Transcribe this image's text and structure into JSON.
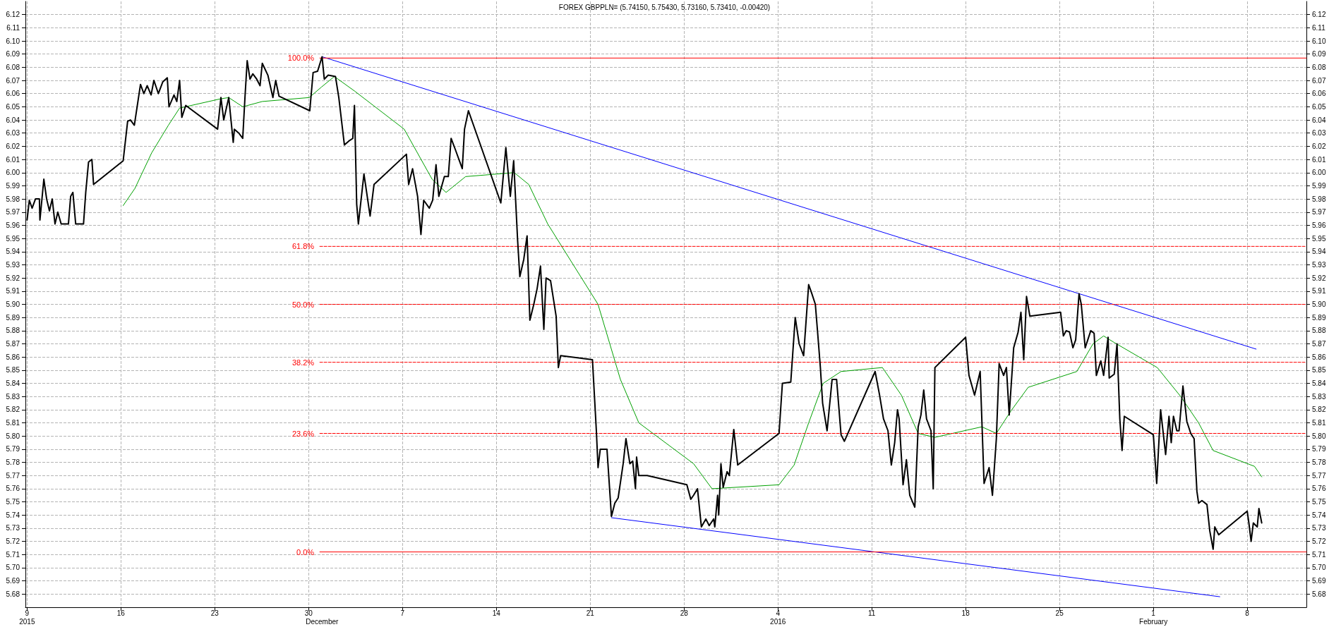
{
  "chart_data": {
    "type": "line",
    "title": "FOREX GBPPLN= (5.74150, 5.75430, 5.73160, 5.73410, -0.00420)",
    "xlim": [
      "2015-11-08T21:00",
      "2016-02-12T10:00"
    ],
    "xticks": [
      {
        "value": "2015-11-09",
        "label": "9"
      },
      {
        "value": "2015-11-16",
        "label": "16"
      },
      {
        "value": "2015-11-23",
        "label": "23"
      },
      {
        "value": "2015-11-30",
        "label": "30"
      },
      {
        "value": "2015-12-07",
        "label": "7"
      },
      {
        "value": "2015-12-14",
        "label": "14"
      },
      {
        "value": "2015-12-21",
        "label": "21"
      },
      {
        "value": "2015-12-28",
        "label": "28"
      },
      {
        "value": "2016-01-04",
        "label": "4"
      },
      {
        "value": "2016-01-11",
        "label": "11"
      },
      {
        "value": "2016-01-18",
        "label": "18"
      },
      {
        "value": "2016-01-25",
        "label": "25"
      },
      {
        "value": "2016-02-01",
        "label": "1"
      },
      {
        "value": "2016-02-08",
        "label": "8"
      }
    ],
    "x2lim": [
      "2015-11-08T21:00",
      "2016-02-12T10:00"
    ],
    "x2ticks": [
      {
        "value": "2015-11-09",
        "label": "2015"
      },
      {
        "value": "2015-12-01",
        "label": "December"
      },
      {
        "value": "2016-01-04",
        "label": "2016"
      },
      {
        "value": "2016-02-01",
        "label": "February"
      }
    ],
    "ylim": [
      5.67,
      6.13
    ],
    "yticks": [
      5.68,
      5.69,
      {
        "value": 5.7,
        "label": "5.70"
      },
      5.71,
      5.72,
      5.73,
      5.74,
      5.75,
      5.76,
      5.77,
      5.78,
      5.79,
      {
        "value": 5.8,
        "label": "5.80"
      },
      5.81,
      5.82,
      5.83,
      5.84,
      5.85,
      5.86,
      5.87,
      5.88,
      5.89,
      {
        "value": 5.9,
        "label": "5.90"
      },
      5.91,
      5.92,
      5.93,
      5.94,
      5.95,
      5.96,
      5.97,
      5.98,
      5.99,
      {
        "value": 6.0,
        "label": "6.00"
      },
      6.01,
      6.02,
      6.03,
      6.04,
      6.05,
      6.06,
      6.07,
      6.08,
      6.09,
      {
        "value": 6.1,
        "label": "6.10"
      },
      6.11,
      6.12
    ],
    "y2lim": [
      5.67,
      6.13
    ],
    "y2ticks": [
      5.68,
      5.69,
      {
        "value": 5.7,
        "label": "5.70"
      },
      5.71,
      5.72,
      5.73,
      5.74,
      5.75,
      5.76,
      5.77,
      5.78,
      5.79,
      {
        "value": 5.8,
        "label": "5.80"
      },
      5.81,
      5.82,
      5.83,
      5.84,
      5.85,
      5.86,
      5.87,
      5.88,
      5.89,
      {
        "value": 5.9,
        "label": "5.90"
      },
      5.91,
      5.92,
      5.93,
      5.94,
      5.95,
      5.96,
      5.97,
      5.98,
      5.99,
      {
        "value": 6.0,
        "label": "6.00"
      },
      6.01,
      6.02,
      6.03,
      6.04,
      6.05,
      6.06,
      6.07,
      6.08,
      6.09,
      {
        "value": 6.1,
        "label": "6.10"
      },
      6.11,
      6.12
    ],
    "grid": true,
    "legend": false,
    "marker": "none",
    "line_style": "solid",
    "series": [
      {
        "color": "#000000",
        "x": [
          "2015-11-09T00:00",
          "2015-11-09T04:00",
          "2015-11-09T09:00",
          "2015-11-09T15:00",
          "2015-11-09T22:00",
          "2015-11-09T23:00",
          "2015-11-10T06:00",
          "2015-11-10T11:00",
          "2015-11-10T16:00",
          "2015-11-10T21:00",
          "2015-11-11T02:00",
          "2015-11-11T07:00",
          "2015-11-11T13:00",
          "2015-11-12T02:00",
          "2015-11-12T06:00",
          "2015-11-12T10:00",
          "2015-11-12T15:00",
          "2015-11-13T05:00",
          "2015-11-13T09:00",
          "2015-11-13T14:00",
          "2015-11-13T20:00",
          "2015-11-13T23:00",
          "2015-11-16T04:00",
          "2015-11-16T12:00",
          "2015-11-16T17:00",
          "2015-11-17T00:00",
          "2015-11-17T11:00",
          "2015-11-17T17:00",
          "2015-11-17T23:00",
          "2015-11-18T06:00",
          "2015-11-18T11:00",
          "2015-11-18T19:00",
          "2015-11-19T03:00",
          "2015-11-19T11:00",
          "2015-11-19T14:00",
          "2015-11-19T23:00",
          "2015-11-20T04:00",
          "2015-11-20T09:00",
          "2015-11-20T13:00",
          "2015-11-20T20:00",
          "2015-11-23T05:00",
          "2015-11-23T11:00",
          "2015-11-23T16:00",
          "2015-11-24T01:00",
          "2015-11-24T09:00",
          "2015-11-24T11:00",
          "2015-11-24T19:00",
          "2015-11-25T02:00",
          "2015-11-25T06:00",
          "2015-11-25T10:00",
          "2015-11-25T15:00",
          "2015-11-25T20:00",
          "2015-11-26T03:00",
          "2015-11-26T09:00",
          "2015-11-26T13:00",
          "2015-11-26T23:00",
          "2015-11-27T08:00",
          "2015-11-27T13:00",
          "2015-11-27T19:00",
          "2015-11-30T02:00",
          "2015-11-30T08:00",
          "2015-11-30T16:00",
          "2015-12-01T00:00",
          "2015-12-01T04:00",
          "2015-12-01T11:00",
          "2015-12-02T00:00",
          "2015-12-02T06:00",
          "2015-12-02T16:00",
          "2015-12-03T00:00",
          "2015-12-03T07:00",
          "2015-12-03T10:00",
          "2015-12-03T14:00",
          "2015-12-03T17:00",
          "2015-12-04T03:00",
          "2015-12-04T14:00",
          "2015-12-04T21:00",
          "2015-12-07T07:00",
          "2015-12-07T11:00",
          "2015-12-07T18:00",
          "2015-12-08T03:00",
          "2015-12-08T09:00",
          "2015-12-08T14:00",
          "2015-12-09T00:00",
          "2015-12-09T06:00",
          "2015-12-09T12:00",
          "2015-12-09T17:00",
          "2015-12-10T03:00",
          "2015-12-10T10:00",
          "2015-12-10T15:00",
          "2015-12-10T23:00",
          "2015-12-11T11:00",
          "2015-12-11T15:00",
          "2015-12-11T22:00",
          "2015-12-14T08:00",
          "2015-12-14T17:00",
          "2015-12-15T01:00",
          "2015-12-15T07:00",
          "2015-12-15T14:00",
          "2015-12-15T18:00",
          "2015-12-16T01:00",
          "2015-12-16T07:00",
          "2015-12-16T12:00",
          "2015-12-16T19:00",
          "2015-12-17T01:00",
          "2015-12-17T07:00",
          "2015-12-17T13:00",
          "2015-12-17T17:00",
          "2015-12-18T01:00",
          "2015-12-18T11:00",
          "2015-12-18T15:00",
          "2015-12-18T19:00",
          "2015-12-21T04:00",
          "2015-12-21T11:00",
          "2015-12-21T14:00",
          "2015-12-21T18:00",
          "2015-12-22T06:00",
          "2015-12-22T14:00",
          "2015-12-22T20:00",
          "2015-12-23T02:00",
          "2015-12-23T11:00",
          "2015-12-23T16:00",
          "2015-12-23T23:00",
          "2015-12-24T04:00",
          "2015-12-24T09:00",
          "2015-12-24T11:00",
          "2015-12-24T15:00",
          "2015-12-25T06:00",
          "2015-12-28T05:00",
          "2015-12-28T12:00",
          "2015-12-28T17:00",
          "2015-12-29T00:00",
          "2015-12-29T07:00",
          "2015-12-29T15:00",
          "2015-12-29T21:00",
          "2015-12-30T05:00",
          "2015-12-30T07:00",
          "2015-12-30T12:00",
          "2015-12-30T14:00",
          "2015-12-30T18:00",
          "2015-12-30T22:00",
          "2015-12-31T05:00",
          "2015-12-31T09:00",
          "2015-12-31T17:00",
          "2016-01-01T00:00",
          "2016-01-04T02:00",
          "2016-01-04T08:00",
          "2016-01-04T23:00",
          "2016-01-05T07:00",
          "2016-01-05T14:00",
          "2016-01-05T22:00",
          "2016-01-06T07:00",
          "2016-01-06T12:00",
          "2016-01-06T19:00",
          "2016-01-06T23:00",
          "2016-01-07T04:00",
          "2016-01-07T08:00",
          "2016-01-07T16:00",
          "2016-01-08T01:00",
          "2016-01-08T09:00",
          "2016-01-08T17:00",
          "2016-01-08T23:00",
          "2016-01-11T06:00",
          "2016-01-11T14:00",
          "2016-01-11T21:00",
          "2016-01-12T05:00",
          "2016-01-12T11:00",
          "2016-01-12T17:00",
          "2016-01-12T22:00",
          "2016-01-13T01:00",
          "2016-01-13T08:00",
          "2016-01-13T14:00",
          "2016-01-13T20:00",
          "2016-01-14T05:00",
          "2016-01-14T11:00",
          "2016-01-14T16:00",
          "2016-01-14T21:00",
          "2016-01-15T02:00",
          "2016-01-15T10:00",
          "2016-01-15T14:00",
          "2016-01-15T17:00",
          "2016-01-18T00:00",
          "2016-01-18T06:00",
          "2016-01-18T16:00",
          "2016-01-19T02:00",
          "2016-01-19T09:00",
          "2016-01-19T18:00",
          "2016-01-20T00:00",
          "2016-01-20T07:00",
          "2016-01-20T12:00",
          "2016-01-20T20:00",
          "2016-01-21T01:00",
          "2016-01-21T06:00",
          "2016-01-21T14:00",
          "2016-01-21T22:00",
          "2016-01-22T03:00",
          "2016-01-22T08:00",
          "2016-01-22T13:00",
          "2016-01-22T19:00",
          "2016-01-25T02:00",
          "2016-01-25T07:00",
          "2016-01-25T12:00",
          "2016-01-25T18:00",
          "2016-01-26T00:00",
          "2016-01-26T05:00",
          "2016-01-26T11:00",
          "2016-01-26T15:00",
          "2016-01-26T22:00",
          "2016-01-27T08:00",
          "2016-01-27T14:00",
          "2016-01-27T18:00",
          "2016-01-28T02:00",
          "2016-01-28T07:00",
          "2016-01-28T15:00",
          "2016-01-28T17:00",
          "2016-01-29T02:00",
          "2016-01-29T07:00",
          "2016-01-29T12:00",
          "2016-01-29T16:00",
          "2016-01-29T20:00",
          "2016-02-01T00:00",
          "2016-02-01T06:00",
          "2016-02-01T13:00",
          "2016-02-01T22:00",
          "2016-02-02T04:00",
          "2016-02-02T08:00",
          "2016-02-02T12:00",
          "2016-02-02T18:00",
          "2016-02-02T22:00",
          "2016-02-03T05:00",
          "2016-02-03T12:00",
          "2016-02-03T19:00",
          "2016-02-04T01:00",
          "2016-02-04T06:00",
          "2016-02-04T09:00",
          "2016-02-04T15:00",
          "2016-02-05T00:00",
          "2016-02-05T05:00",
          "2016-02-05T11:00",
          "2016-02-05T14:00",
          "2016-02-05T21:00",
          "2016-02-08T00:00",
          "2016-02-08T03:00",
          "2016-02-08T07:00",
          "2016-02-08T11:00",
          "2016-02-08T18:00",
          "2016-02-08T21:00",
          "2016-02-09T02:00"
        ],
        "values": [
          5.964,
          5.979,
          5.973,
          5.98,
          5.98,
          5.964,
          5.995,
          5.98,
          5.971,
          5.98,
          5.961,
          5.97,
          5.961,
          5.961,
          5.982,
          5.985,
          5.961,
          5.961,
          5.985,
          6.008,
          6.01,
          5.991,
          6.009,
          6.039,
          6.04,
          6.036,
          6.067,
          6.06,
          6.066,
          6.059,
          6.07,
          6.06,
          6.069,
          6.072,
          6.05,
          6.059,
          6.054,
          6.07,
          6.042,
          6.051,
          6.033,
          6.057,
          6.04,
          6.057,
          6.023,
          6.033,
          6.03,
          6.026,
          6.057,
          6.085,
          6.071,
          6.075,
          6.071,
          6.066,
          6.083,
          6.074,
          6.057,
          6.07,
          6.058,
          6.047,
          6.076,
          6.077,
          6.088,
          6.071,
          6.074,
          6.073,
          6.057,
          6.021,
          6.024,
          6.026,
          6.051,
          5.976,
          5.961,
          5.999,
          5.967,
          5.991,
          6.014,
          5.991,
          6.003,
          5.982,
          5.953,
          5.979,
          5.973,
          5.979,
          6.006,
          5.982,
          5.997,
          5.997,
          6.026,
          6.017,
          6.003,
          6.033,
          6.047,
          5.977,
          6.019,
          5.982,
          6.009,
          5.949,
          5.921,
          5.934,
          5.952,
          5.888,
          5.9,
          5.912,
          5.929,
          5.881,
          5.92,
          5.918,
          5.891,
          5.852,
          5.861,
          5.858,
          5.804,
          5.776,
          5.79,
          5.79,
          5.739,
          5.749,
          5.753,
          5.779,
          5.798,
          5.779,
          5.781,
          5.76,
          5.784,
          5.77,
          5.77,
          5.763,
          5.752,
          5.755,
          5.76,
          5.731,
          5.737,
          5.732,
          5.737,
          5.731,
          5.755,
          5.74,
          5.779,
          5.761,
          5.773,
          5.77,
          5.805,
          5.778,
          5.802,
          5.84,
          5.841,
          5.89,
          5.87,
          5.861,
          5.915,
          5.909,
          5.9,
          5.879,
          5.852,
          5.825,
          5.804,
          5.843,
          5.843,
          5.801,
          5.796,
          5.849,
          5.831,
          5.813,
          5.804,
          5.778,
          5.795,
          5.82,
          5.813,
          5.763,
          5.782,
          5.755,
          5.746,
          5.807,
          5.816,
          5.835,
          5.813,
          5.804,
          5.76,
          5.852,
          5.875,
          5.846,
          5.831,
          5.849,
          5.764,
          5.776,
          5.755,
          5.798,
          5.855,
          5.846,
          5.852,
          5.816,
          5.867,
          5.879,
          5.894,
          5.858,
          5.906,
          5.891,
          5.894,
          5.876,
          5.88,
          5.879,
          5.867,
          5.873,
          5.908,
          5.9,
          5.867,
          5.88,
          5.878,
          5.846,
          5.857,
          5.846,
          5.875,
          5.844,
          5.847,
          5.87,
          5.813,
          5.789,
          5.815,
          5.801,
          5.764,
          5.82,
          5.786,
          5.815,
          5.795,
          5.815,
          5.804,
          5.804,
          5.838,
          5.811,
          5.802,
          5.798,
          5.758,
          5.749,
          5.751,
          5.748,
          5.728,
          5.714,
          5.731,
          5.725,
          5.743,
          5.734,
          5.72,
          5.734,
          5.731,
          5.745,
          5.734
        ]
      },
      {
        "color": "#00a000",
        "x": [
          "2015-11-16T04:00",
          "2015-11-17T01:00",
          "2015-11-18T07:00",
          "2015-11-19T13:00",
          "2015-11-20T09:00",
          "2015-11-23T10:00",
          "2015-11-24T01:00",
          "2015-11-25T02:00",
          "2015-11-26T13:00",
          "2015-11-30T01:00",
          "2015-11-30T23:00",
          "2015-12-01T22:00",
          "2015-12-03T10:00",
          "2015-12-07T03:00",
          "2015-12-09T05:00",
          "2015-12-10T06:00",
          "2015-12-11T17:00",
          "2015-12-15T08:00",
          "2015-12-16T10:00",
          "2015-12-17T20:00",
          "2015-12-21T14:00",
          "2015-12-23T06:00",
          "2015-12-24T15:00",
          "2015-12-28T17:00",
          "2015-12-30T02:00",
          "2016-01-04T02:00",
          "2016-01-05T05:00",
          "2016-01-06T07:00",
          "2016-01-07T09:00",
          "2016-01-08T17:00",
          "2016-01-11T19:00",
          "2016-01-13T05:00",
          "2016-01-14T11:00",
          "2016-01-15T17:00",
          "2016-01-19T05:00",
          "2016-01-20T07:00",
          "2016-01-21T09:00",
          "2016-01-22T16:00",
          "2016-01-26T07:00",
          "2016-01-27T12:00",
          "2016-01-28T07:00",
          "2016-01-29T02:00",
          "2016-02-01T07:00",
          "2016-02-03T01:00",
          "2016-02-04T09:00",
          "2016-02-05T11:00",
          "2016-02-08T13:00",
          "2016-02-09T02:00"
        ],
        "values": [
          5.975,
          5.988,
          6.015,
          6.036,
          6.049,
          6.056,
          6.057,
          6.05,
          6.054,
          6.057,
          6.065,
          6.073,
          6.062,
          6.033,
          5.995,
          5.985,
          5.997,
          6.0,
          5.991,
          5.961,
          5.9,
          5.843,
          5.81,
          5.779,
          5.76,
          5.763,
          5.778,
          5.81,
          5.84,
          5.849,
          5.852,
          5.831,
          5.802,
          5.799,
          5.807,
          5.802,
          5.819,
          5.837,
          5.849,
          5.87,
          5.876,
          5.871,
          5.852,
          5.83,
          5.81,
          5.789,
          5.777,
          5.769
        ]
      },
      {
        "color": "#0000ff",
        "x": [
          "2015-12-01T00:00",
          "2016-02-08T16:00"
        ],
        "values": [
          6.088,
          5.866
        ]
      },
      {
        "color": "#0000ff",
        "x": [
          "2015-12-22T14:00",
          "2016-02-05T23:00"
        ],
        "values": [
          5.738,
          5.678
        ]
      },
      {
        "name": "100.0%",
        "color": "#ff0000",
        "line_style": "solid",
        "x": [
          "2015-11-30T20:00",
          "2016-02-12T10:00"
        ],
        "values": [
          6.087,
          6.087
        ]
      },
      {
        "name": "61.8%",
        "color": "#ff0000",
        "line_style": "dashed",
        "x": [
          "2015-11-30T20:00",
          "2016-02-12T10:00"
        ],
        "values": [
          5.944,
          5.944
        ]
      },
      {
        "name": "50.0%",
        "color": "#ff0000",
        "line_style": "dashed",
        "x": [
          "2015-11-30T20:00",
          "2016-02-12T10:00"
        ],
        "values": [
          5.9,
          5.9
        ]
      },
      {
        "name": "38.2%",
        "color": "#ff0000",
        "line_style": "dashed",
        "x": [
          "2015-11-30T20:00",
          "2016-02-12T10:00"
        ],
        "values": [
          5.856,
          5.856
        ]
      },
      {
        "name": "23.6%",
        "color": "#ff0000",
        "line_style": "dashed",
        "x": [
          "2015-11-30T20:00",
          "2016-02-12T10:00"
        ],
        "values": [
          5.802,
          5.802
        ]
      },
      {
        "name": "0.0%",
        "color": "#ff0000",
        "line_style": "solid",
        "x": [
          "2015-11-30T20:00",
          "2016-02-12T10:00"
        ],
        "values": [
          5.712,
          5.712
        ]
      }
    ]
  }
}
